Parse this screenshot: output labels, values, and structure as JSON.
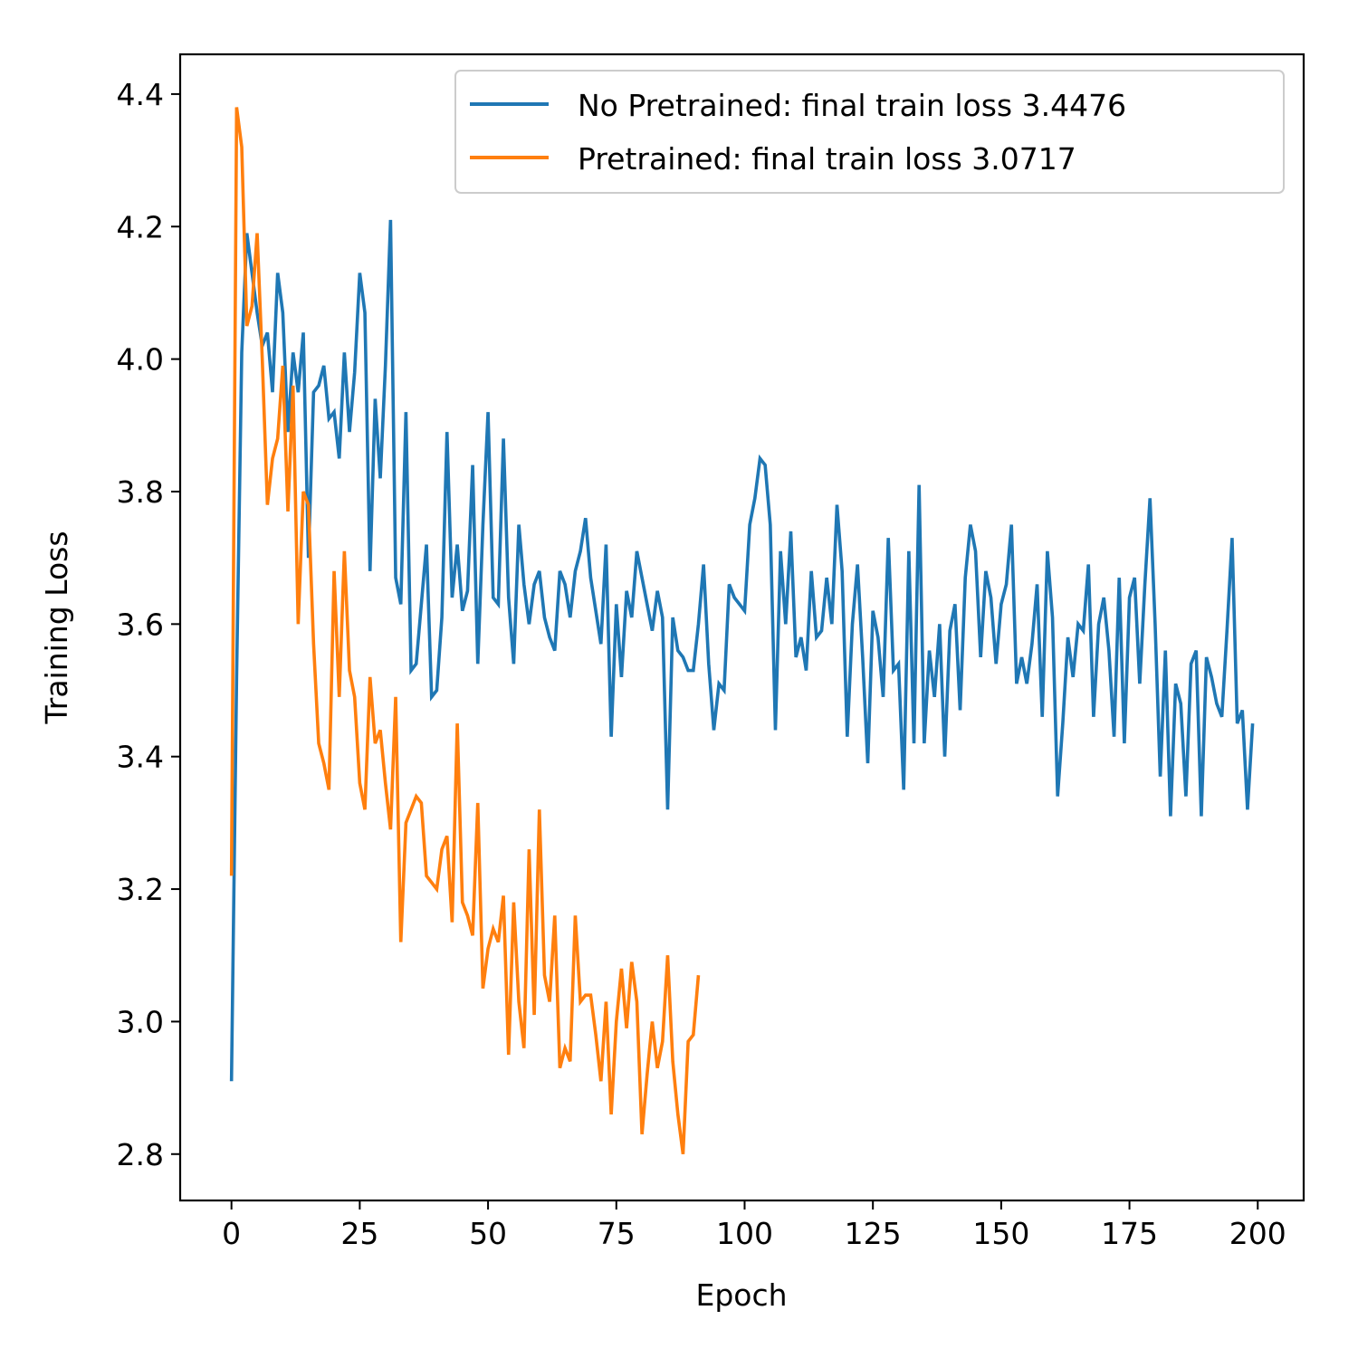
{
  "chart_data": {
    "type": "line",
    "title": "",
    "xlabel": "Epoch",
    "ylabel": "Training Loss",
    "xlim": [
      -10,
      208.95
    ],
    "ylim": [
      2.73,
      4.46
    ],
    "xticks": [
      0,
      25,
      50,
      75,
      100,
      125,
      150,
      175,
      200
    ],
    "yticks": [
      2.8,
      3.0,
      3.2,
      3.4,
      3.6,
      3.8,
      4.0,
      4.2,
      4.4
    ],
    "legend_position": "top-right",
    "grid": false,
    "series": [
      {
        "name": "No Pretrained: final train loss 3.4476",
        "color": "#1f77b4",
        "values": [
          2.91,
          3.52,
          4.01,
          4.19,
          4.13,
          4.07,
          4.02,
          4.04,
          3.95,
          4.13,
          4.07,
          3.89,
          4.01,
          3.95,
          4.04,
          3.7,
          3.95,
          3.96,
          3.99,
          3.91,
          3.92,
          3.85,
          4.01,
          3.89,
          3.98,
          4.13,
          4.07,
          3.68,
          3.94,
          3.82,
          3.99,
          4.21,
          3.67,
          3.63,
          3.92,
          3.53,
          3.54,
          3.63,
          3.72,
          3.49,
          3.5,
          3.61,
          3.89,
          3.64,
          3.72,
          3.62,
          3.65,
          3.84,
          3.54,
          3.75,
          3.92,
          3.64,
          3.63,
          3.88,
          3.64,
          3.54,
          3.75,
          3.66,
          3.6,
          3.66,
          3.68,
          3.61,
          3.58,
          3.56,
          3.68,
          3.66,
          3.61,
          3.68,
          3.71,
          3.76,
          3.67,
          3.62,
          3.57,
          3.72,
          3.43,
          3.63,
          3.52,
          3.65,
          3.61,
          3.71,
          3.67,
          3.63,
          3.59,
          3.65,
          3.61,
          3.32,
          3.61,
          3.56,
          3.55,
          3.53,
          3.53,
          3.6,
          3.69,
          3.54,
          3.44,
          3.51,
          3.5,
          3.66,
          3.64,
          3.63,
          3.62,
          3.75,
          3.79,
          3.85,
          3.84,
          3.75,
          3.44,
          3.71,
          3.6,
          3.74,
          3.55,
          3.58,
          3.53,
          3.68,
          3.58,
          3.59,
          3.67,
          3.6,
          3.78,
          3.68,
          3.43,
          3.6,
          3.69,
          3.55,
          3.39,
          3.62,
          3.58,
          3.49,
          3.73,
          3.53,
          3.54,
          3.35,
          3.71,
          3.42,
          3.81,
          3.42,
          3.56,
          3.49,
          3.6,
          3.4,
          3.59,
          3.63,
          3.47,
          3.67,
          3.75,
          3.71,
          3.55,
          3.68,
          3.64,
          3.54,
          3.63,
          3.66,
          3.75,
          3.51,
          3.55,
          3.51,
          3.57,
          3.66,
          3.46,
          3.71,
          3.61,
          3.34,
          3.45,
          3.58,
          3.52,
          3.6,
          3.59,
          3.69,
          3.46,
          3.6,
          3.64,
          3.56,
          3.43,
          3.67,
          3.42,
          3.64,
          3.67,
          3.51,
          3.66,
          3.79,
          3.6,
          3.37,
          3.56,
          3.31,
          3.51,
          3.48,
          3.34,
          3.54,
          3.56,
          3.31,
          3.55,
          3.52,
          3.48,
          3.46,
          3.59,
          3.73,
          3.45,
          3.47,
          3.32,
          3.45
        ]
      },
      {
        "name": "Pretrained: final train loss 3.0717",
        "color": "#ff7f0e",
        "values": [
          3.22,
          4.38,
          4.32,
          4.05,
          4.08,
          4.19,
          4.0,
          3.78,
          3.85,
          3.88,
          3.99,
          3.77,
          3.96,
          3.6,
          3.8,
          3.78,
          3.57,
          3.42,
          3.39,
          3.35,
          3.68,
          3.49,
          3.71,
          3.53,
          3.49,
          3.36,
          3.32,
          3.52,
          3.42,
          3.44,
          3.36,
          3.29,
          3.49,
          3.12,
          3.3,
          3.32,
          3.34,
          3.33,
          3.22,
          3.21,
          3.2,
          3.26,
          3.28,
          3.15,
          3.45,
          3.18,
          3.16,
          3.13,
          3.33,
          3.05,
          3.11,
          3.14,
          3.12,
          3.19,
          2.95,
          3.18,
          3.03,
          2.96,
          3.26,
          3.01,
          3.32,
          3.07,
          3.03,
          3.16,
          2.93,
          2.96,
          2.94,
          3.16,
          3.03,
          3.04,
          3.04,
          2.98,
          2.91,
          3.03,
          2.86,
          3.0,
          3.08,
          2.99,
          3.09,
          3.03,
          2.83,
          2.92,
          3.0,
          2.93,
          2.97,
          3.1,
          2.94,
          2.86,
          2.8,
          2.97,
          2.98,
          3.07
        ]
      }
    ]
  }
}
